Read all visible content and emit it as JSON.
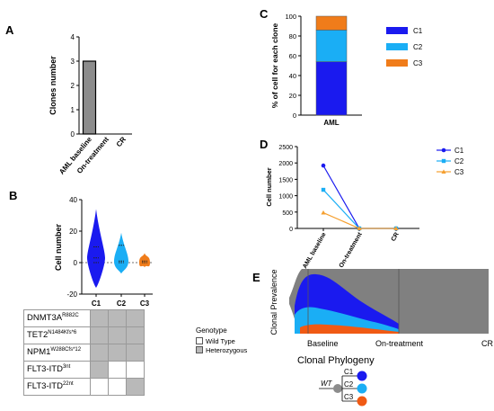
{
  "panels": {
    "A": "A",
    "B": "B",
    "C": "C",
    "D": "D",
    "E": "E"
  },
  "chart_data": [
    {
      "panel": "A",
      "type": "bar",
      "categories": [
        "AML baseline",
        "On-treatment",
        "CR"
      ],
      "values": [
        3,
        0,
        0
      ],
      "ylabel": "Clones number",
      "ylim": [
        0,
        4
      ],
      "yticks": [
        "0",
        "1",
        "2",
        "3",
        "4"
      ],
      "bar_color": "#8c8c8c"
    },
    {
      "panel": "B",
      "type": "violin",
      "categories": [
        "C1",
        "C2",
        "C3"
      ],
      "ylabel": "Cell number",
      "ylim": [
        -20,
        40
      ],
      "yticks": [
        "-20",
        "0",
        "20",
        "40"
      ],
      "series": [
        {
          "name": "C1",
          "color": "#1a1aef",
          "points": [
            0,
            3,
            10
          ],
          "range": [
            -16,
            34
          ]
        },
        {
          "name": "C2",
          "color": "#1aaef5",
          "points": [
            0,
            1,
            11
          ],
          "range": [
            -7,
            19
          ]
        },
        {
          "name": "C3",
          "color": "#f07c1a",
          "points": [
            0,
            0,
            1
          ],
          "range": [
            -3,
            6
          ]
        }
      ]
    },
    {
      "panel": "C",
      "type": "stacked_bar",
      "categories": [
        "AML"
      ],
      "ylabel": "% of cell for each clone",
      "ylim": [
        0,
        100
      ],
      "yticks": [
        "0",
        "20",
        "40",
        "60",
        "80",
        "100"
      ],
      "series": [
        {
          "name": "C1",
          "color": "#1a1aef",
          "values": [
            54
          ]
        },
        {
          "name": "C2",
          "color": "#1aaef5",
          "values": [
            32
          ]
        },
        {
          "name": "C3",
          "color": "#f07c1a",
          "values": [
            14
          ]
        }
      ],
      "legend": "right"
    },
    {
      "panel": "D",
      "type": "line",
      "categories": [
        "AML baseline",
        "On-treatment",
        "CR"
      ],
      "ylabel": "Cell number",
      "ylim": [
        0,
        2500
      ],
      "yticks": [
        "0",
        "500",
        "1000",
        "1500",
        "2000",
        "2500"
      ],
      "series": [
        {
          "name": "C1",
          "color": "#1a1aef",
          "marker": "circle",
          "values": [
            1920,
            0,
            0
          ]
        },
        {
          "name": "C2",
          "color": "#1aaef5",
          "marker": "square",
          "values": [
            1180,
            0,
            0
          ]
        },
        {
          "name": "C3",
          "color": "#f5a030",
          "marker": "triangle",
          "values": [
            480,
            0,
            0
          ]
        }
      ],
      "legend": "right"
    },
    {
      "panel": "E",
      "type": "area",
      "ylabel": "Clonal Prevalence",
      "x_labels": [
        "Baseline",
        "On-treatment",
        "CR"
      ],
      "series": [
        {
          "name": "C1",
          "color": "#1a1aef"
        },
        {
          "name": "C2",
          "color": "#1aaef5"
        },
        {
          "name": "C3",
          "color": "#f05a14"
        }
      ],
      "background_color": "#808080"
    }
  ],
  "genotype_table": {
    "rows": [
      {
        "gene": "DNMT3A",
        "mut": "R882C",
        "values": [
          "het",
          "het",
          "het"
        ]
      },
      {
        "gene": "TET2",
        "mut": "N1484Kfs*6",
        "values": [
          "het",
          "het",
          "het"
        ]
      },
      {
        "gene": "NPM1",
        "mut": "W288Cfs*12",
        "values": [
          "het",
          "het",
          "het"
        ]
      },
      {
        "gene": "FLT3-ITD",
        "mut": "3nt",
        "values": [
          "het",
          "wt",
          "wt"
        ]
      },
      {
        "gene": "FLT3-ITD",
        "mut": "22nt",
        "values": [
          "wt",
          "wt",
          "het"
        ]
      }
    ],
    "legend_title": "Genotype",
    "legend_items": [
      {
        "label": "Wild Type",
        "color": "#ffffff"
      },
      {
        "label": "Heterozygous",
        "color": "#b9b9b9"
      }
    ]
  },
  "phylogeny": {
    "title": "Clonal  Phylogeny",
    "root_label": "WT",
    "root_color": "#8c8c8c",
    "nodes": [
      {
        "label": "C1",
        "color": "#1a1aef"
      },
      {
        "label": "C2",
        "color": "#1aaef5"
      },
      {
        "label": "C3",
        "color": "#f05a14"
      }
    ]
  }
}
